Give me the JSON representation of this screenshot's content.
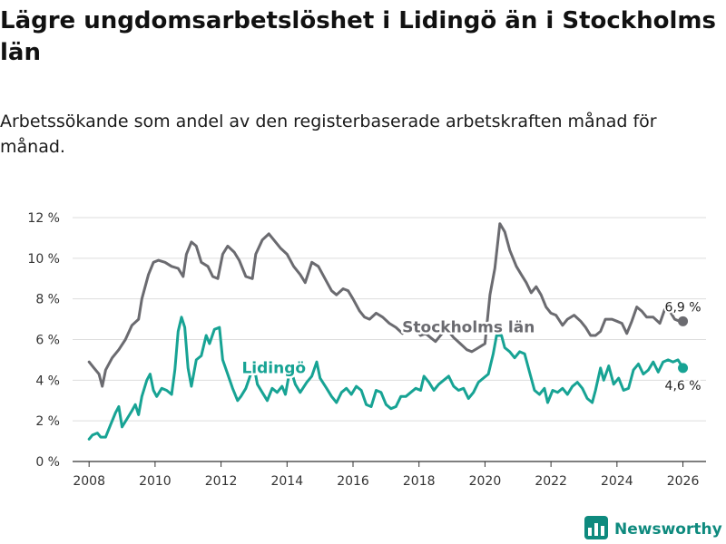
{
  "title": "Lägre ungdomsarbetslöshet i Lidingö än i Stockholms län",
  "subtitle": "Arbetssökande som andel av den registerbaserade arbetskraften månad för månad.",
  "brand": {
    "name": "Newsworthy",
    "icon": "newsworthy-logo-icon"
  },
  "colors": {
    "stockholm": "#6b6b70",
    "lidingo": "#17a394",
    "grid": "#dddddd",
    "axis": "#333333",
    "brand": "#0e8a7e"
  },
  "chart_data": {
    "type": "line",
    "title": "Lägre ungdomsarbetslöshet i Lidingö än i Stockholms län",
    "subtitle": "Arbetssökande som andel av den registerbaserade arbetskraften månad för månad.",
    "xlabel": "",
    "ylabel": "",
    "xlim": [
      2007.5,
      2026.7
    ],
    "ylim": [
      0,
      12.5
    ],
    "grid": true,
    "yticks": [
      0,
      2,
      4,
      6,
      8,
      10,
      12
    ],
    "ytick_labels": [
      "0 %",
      "2 %",
      "4 %",
      "6 %",
      "8 %",
      "10 %",
      "12 %"
    ],
    "xticks": [
      2008,
      2010,
      2012,
      2014,
      2016,
      2018,
      2020,
      2022,
      2024,
      2026
    ],
    "xtick_labels": [
      "2008",
      "2010",
      "2012",
      "2014",
      "2016",
      "2018",
      "2020",
      "2022",
      "2024",
      "2026"
    ],
    "series": [
      {
        "name": "Stockholms län",
        "color": "#6b6b70",
        "label": "Stockholms län",
        "end_label": "6,9 %",
        "points": [
          [
            2008.0,
            4.9
          ],
          [
            2008.15,
            4.6
          ],
          [
            2008.3,
            4.3
          ],
          [
            2008.4,
            3.7
          ],
          [
            2008.5,
            4.5
          ],
          [
            2008.7,
            5.1
          ],
          [
            2008.9,
            5.5
          ],
          [
            2009.1,
            6.0
          ],
          [
            2009.3,
            6.7
          ],
          [
            2009.5,
            7.0
          ],
          [
            2009.6,
            8.0
          ],
          [
            2009.8,
            9.2
          ],
          [
            2009.95,
            9.8
          ],
          [
            2010.1,
            9.9
          ],
          [
            2010.3,
            9.8
          ],
          [
            2010.5,
            9.6
          ],
          [
            2010.7,
            9.5
          ],
          [
            2010.85,
            9.1
          ],
          [
            2010.95,
            10.2
          ],
          [
            2011.1,
            10.8
          ],
          [
            2011.25,
            10.6
          ],
          [
            2011.4,
            9.8
          ],
          [
            2011.6,
            9.6
          ],
          [
            2011.75,
            9.1
          ],
          [
            2011.9,
            9.0
          ],
          [
            2012.05,
            10.2
          ],
          [
            2012.2,
            10.6
          ],
          [
            2012.4,
            10.3
          ],
          [
            2012.55,
            9.9
          ],
          [
            2012.75,
            9.1
          ],
          [
            2012.95,
            9.0
          ],
          [
            2013.05,
            10.2
          ],
          [
            2013.25,
            10.9
          ],
          [
            2013.45,
            11.2
          ],
          [
            2013.6,
            10.9
          ],
          [
            2013.8,
            10.5
          ],
          [
            2014.0,
            10.2
          ],
          [
            2014.2,
            9.6
          ],
          [
            2014.4,
            9.2
          ],
          [
            2014.55,
            8.8
          ],
          [
            2014.75,
            9.8
          ],
          [
            2014.95,
            9.6
          ],
          [
            2015.15,
            9.0
          ],
          [
            2015.35,
            8.4
          ],
          [
            2015.5,
            8.2
          ],
          [
            2015.7,
            8.5
          ],
          [
            2015.85,
            8.4
          ],
          [
            2016.0,
            8.0
          ],
          [
            2016.2,
            7.4
          ],
          [
            2016.35,
            7.1
          ],
          [
            2016.5,
            7.0
          ],
          [
            2016.7,
            7.3
          ],
          [
            2016.9,
            7.1
          ],
          [
            2017.1,
            6.8
          ],
          [
            2017.3,
            6.6
          ],
          [
            2017.5,
            6.3
          ],
          [
            2017.7,
            6.6
          ],
          [
            2017.9,
            6.5
          ],
          [
            2018.05,
            6.2
          ],
          [
            2018.2,
            6.3
          ],
          [
            2018.35,
            6.1
          ],
          [
            2018.5,
            5.9
          ],
          [
            2018.7,
            6.3
          ],
          [
            2018.9,
            6.4
          ],
          [
            2019.05,
            6.1
          ],
          [
            2019.25,
            5.8
          ],
          [
            2019.45,
            5.5
          ],
          [
            2019.6,
            5.4
          ],
          [
            2019.8,
            5.6
          ],
          [
            2020.0,
            5.8
          ],
          [
            2020.15,
            8.2
          ],
          [
            2020.3,
            9.5
          ],
          [
            2020.45,
            11.7
          ],
          [
            2020.6,
            11.3
          ],
          [
            2020.75,
            10.4
          ],
          [
            2020.95,
            9.6
          ],
          [
            2021.1,
            9.2
          ],
          [
            2021.25,
            8.8
          ],
          [
            2021.4,
            8.3
          ],
          [
            2021.55,
            8.6
          ],
          [
            2021.7,
            8.2
          ],
          [
            2021.85,
            7.6
          ],
          [
            2022.0,
            7.3
          ],
          [
            2022.15,
            7.2
          ],
          [
            2022.35,
            6.7
          ],
          [
            2022.5,
            7.0
          ],
          [
            2022.7,
            7.2
          ],
          [
            2022.9,
            6.9
          ],
          [
            2023.05,
            6.6
          ],
          [
            2023.2,
            6.2
          ],
          [
            2023.35,
            6.2
          ],
          [
            2023.5,
            6.4
          ],
          [
            2023.65,
            7.0
          ],
          [
            2023.85,
            7.0
          ],
          [
            2024.0,
            6.9
          ],
          [
            2024.15,
            6.8
          ],
          [
            2024.3,
            6.3
          ],
          [
            2024.45,
            6.9
          ],
          [
            2024.6,
            7.6
          ],
          [
            2024.75,
            7.4
          ],
          [
            2024.9,
            7.1
          ],
          [
            2025.1,
            7.1
          ],
          [
            2025.3,
            6.8
          ],
          [
            2025.45,
            7.5
          ],
          [
            2025.6,
            7.4
          ],
          [
            2025.75,
            7.0
          ],
          [
            2025.9,
            6.9
          ],
          [
            2026.0,
            6.9
          ]
        ]
      },
      {
        "name": "Lidingö",
        "color": "#17a394",
        "label": "Lidingö",
        "end_label": "4,6 %",
        "points": [
          [
            2008.0,
            1.1
          ],
          [
            2008.1,
            1.3
          ],
          [
            2008.25,
            1.4
          ],
          [
            2008.35,
            1.2
          ],
          [
            2008.5,
            1.2
          ],
          [
            2008.65,
            1.8
          ],
          [
            2008.8,
            2.4
          ],
          [
            2008.9,
            2.7
          ],
          [
            2009.0,
            1.7
          ],
          [
            2009.15,
            2.1
          ],
          [
            2009.3,
            2.5
          ],
          [
            2009.4,
            2.8
          ],
          [
            2009.5,
            2.3
          ],
          [
            2009.6,
            3.2
          ],
          [
            2009.75,
            4.0
          ],
          [
            2009.85,
            4.3
          ],
          [
            2009.95,
            3.5
          ],
          [
            2010.05,
            3.2
          ],
          [
            2010.2,
            3.6
          ],
          [
            2010.35,
            3.5
          ],
          [
            2010.5,
            3.3
          ],
          [
            2010.6,
            4.5
          ],
          [
            2010.7,
            6.4
          ],
          [
            2010.8,
            7.1
          ],
          [
            2010.9,
            6.6
          ],
          [
            2011.0,
            4.6
          ],
          [
            2011.1,
            3.7
          ],
          [
            2011.25,
            5.0
          ],
          [
            2011.4,
            5.2
          ],
          [
            2011.55,
            6.2
          ],
          [
            2011.65,
            5.8
          ],
          [
            2011.8,
            6.5
          ],
          [
            2011.95,
            6.6
          ],
          [
            2012.05,
            5.0
          ],
          [
            2012.2,
            4.3
          ],
          [
            2012.35,
            3.6
          ],
          [
            2012.5,
            3.0
          ],
          [
            2012.6,
            3.2
          ],
          [
            2012.75,
            3.6
          ],
          [
            2012.9,
            4.3
          ],
          [
            2013.0,
            4.7
          ],
          [
            2013.1,
            3.8
          ],
          [
            2013.25,
            3.4
          ],
          [
            2013.4,
            3.0
          ],
          [
            2013.55,
            3.6
          ],
          [
            2013.7,
            3.4
          ],
          [
            2013.85,
            3.7
          ],
          [
            2013.95,
            3.3
          ],
          [
            2014.1,
            4.6
          ],
          [
            2014.25,
            3.8
          ],
          [
            2014.4,
            3.4
          ],
          [
            2014.6,
            3.9
          ],
          [
            2014.75,
            4.2
          ],
          [
            2014.9,
            4.9
          ],
          [
            2015.0,
            4.1
          ],
          [
            2015.2,
            3.6
          ],
          [
            2015.35,
            3.2
          ],
          [
            2015.5,
            2.9
          ],
          [
            2015.65,
            3.4
          ],
          [
            2015.8,
            3.6
          ],
          [
            2015.95,
            3.3
          ],
          [
            2016.1,
            3.7
          ],
          [
            2016.25,
            3.5
          ],
          [
            2016.4,
            2.8
          ],
          [
            2016.55,
            2.7
          ],
          [
            2016.7,
            3.5
          ],
          [
            2016.85,
            3.4
          ],
          [
            2017.0,
            2.8
          ],
          [
            2017.15,
            2.6
          ],
          [
            2017.3,
            2.7
          ],
          [
            2017.45,
            3.2
          ],
          [
            2017.6,
            3.2
          ],
          [
            2017.75,
            3.4
          ],
          [
            2017.9,
            3.6
          ],
          [
            2018.05,
            3.5
          ],
          [
            2018.15,
            4.2
          ],
          [
            2018.3,
            3.9
          ],
          [
            2018.45,
            3.5
          ],
          [
            2018.6,
            3.8
          ],
          [
            2018.75,
            4.0
          ],
          [
            2018.9,
            4.2
          ],
          [
            2019.05,
            3.7
          ],
          [
            2019.2,
            3.5
          ],
          [
            2019.35,
            3.6
          ],
          [
            2019.5,
            3.1
          ],
          [
            2019.65,
            3.4
          ],
          [
            2019.8,
            3.9
          ],
          [
            2019.95,
            4.1
          ],
          [
            2020.1,
            4.3
          ],
          [
            2020.25,
            5.3
          ],
          [
            2020.35,
            6.2
          ],
          [
            2020.5,
            6.2
          ],
          [
            2020.6,
            5.6
          ],
          [
            2020.75,
            5.4
          ],
          [
            2020.9,
            5.1
          ],
          [
            2021.05,
            5.4
          ],
          [
            2021.2,
            5.3
          ],
          [
            2021.35,
            4.4
          ],
          [
            2021.5,
            3.5
          ],
          [
            2021.65,
            3.3
          ],
          [
            2021.8,
            3.6
          ],
          [
            2021.9,
            2.9
          ],
          [
            2022.05,
            3.5
          ],
          [
            2022.2,
            3.4
          ],
          [
            2022.35,
            3.6
          ],
          [
            2022.5,
            3.3
          ],
          [
            2022.65,
            3.7
          ],
          [
            2022.8,
            3.9
          ],
          [
            2022.95,
            3.6
          ],
          [
            2023.1,
            3.1
          ],
          [
            2023.25,
            2.9
          ],
          [
            2023.35,
            3.5
          ],
          [
            2023.5,
            4.6
          ],
          [
            2023.6,
            4.0
          ],
          [
            2023.75,
            4.7
          ],
          [
            2023.9,
            3.8
          ],
          [
            2024.05,
            4.1
          ],
          [
            2024.2,
            3.5
          ],
          [
            2024.35,
            3.6
          ],
          [
            2024.5,
            4.5
          ],
          [
            2024.65,
            4.8
          ],
          [
            2024.8,
            4.3
          ],
          [
            2024.95,
            4.5
          ],
          [
            2025.1,
            4.9
          ],
          [
            2025.25,
            4.4
          ],
          [
            2025.4,
            4.9
          ],
          [
            2025.55,
            5.0
          ],
          [
            2025.7,
            4.9
          ],
          [
            2025.85,
            5.0
          ],
          [
            2026.0,
            4.6
          ]
        ]
      }
    ]
  }
}
